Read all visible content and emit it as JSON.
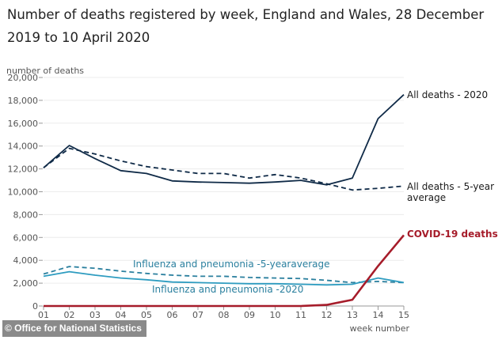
{
  "header": {
    "title": "Number of deaths registered by week, England and Wales, 28 December 2019 to 10 April 2020"
  },
  "footer": {
    "source": "© Office for National Statistics"
  },
  "chart_data": {
    "type": "line",
    "title": "Number of deaths registered by week, England and Wales, 28 December 2019 to 10 April 2020",
    "xlabel": "week number",
    "ylabel": "number of deaths",
    "x": [
      "01",
      "02",
      "03",
      "04",
      "05",
      "06",
      "07",
      "08",
      "09",
      "10",
      "11",
      "12",
      "13",
      "14",
      "15"
    ],
    "ylim": [
      0,
      20000
    ],
    "yticks": [
      0,
      2000,
      4000,
      6000,
      8000,
      10000,
      12000,
      14000,
      16000,
      18000,
      20000
    ],
    "ytick_labels": [
      "0",
      "2,000",
      "4,000",
      "6,000",
      "8,000",
      "10,000",
      "12,000",
      "14,000",
      "16,000",
      "18,000",
      "20,000"
    ],
    "grid": true,
    "series": [
      {
        "name": "All deaths - 2020",
        "label_lines": [
          "All deaths - 2020"
        ],
        "color": "#0f2a47",
        "dash": false,
        "values": [
          12100,
          14050,
          12900,
          11850,
          11600,
          10950,
          10850,
          10800,
          10750,
          10850,
          11000,
          10600,
          11200,
          16400,
          18500
        ]
      },
      {
        "name": "All deaths - 5-year average",
        "label_lines": [
          "All deaths - 5-year",
          "average"
        ],
        "color": "#0f2a47",
        "dash": true,
        "values": [
          12100,
          13800,
          13300,
          12700,
          12200,
          11900,
          11600,
          11600,
          11200,
          11500,
          11200,
          10700,
          10150,
          10300,
          10500
        ]
      },
      {
        "name": "Influenza and pneumonia -5-yearaverage",
        "label_lines": [
          "Influenza and pneumonia -5-yearaverage"
        ],
        "color": "#2a7f9e",
        "dash": true,
        "values": [
          2800,
          3450,
          3300,
          3050,
          2850,
          2700,
          2600,
          2600,
          2500,
          2450,
          2400,
          2250,
          2050,
          2150,
          2050
        ]
      },
      {
        "name": "Influenza and pneumonia -2020",
        "label_lines": [
          "Influenza and pneumonia -2020"
        ],
        "color": "#2e9cc0",
        "dash": false,
        "values": [
          2600,
          3000,
          2700,
          2450,
          2300,
          2100,
          2050,
          2000,
          1950,
          1950,
          1900,
          1850,
          1900,
          2450,
          2050
        ]
      },
      {
        "name": "COVID-19 deaths",
        "label_lines": [
          "COVID-19 deaths"
        ],
        "color": "#a61c2a",
        "dash": false,
        "values": [
          0,
          0,
          0,
          0,
          0,
          0,
          0,
          0,
          0,
          0,
          0,
          100,
          550,
          3500,
          6200
        ]
      }
    ]
  }
}
